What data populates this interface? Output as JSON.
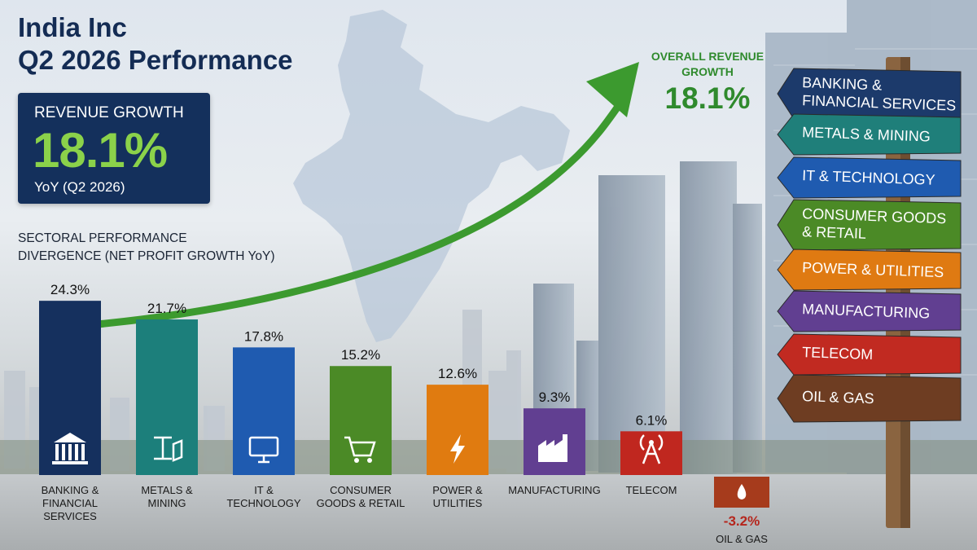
{
  "header": {
    "title_line1": "India Inc",
    "title_line2": "Q2 2026 Performance"
  },
  "revenue_box": {
    "label": "REVENUE GROWTH",
    "value": "18.1%",
    "subtitle": "YoY (Q2 2026)"
  },
  "sector_heading": {
    "line1": "SECTORAL PERFORMANCE",
    "line2_bold": "DIVERGENCE",
    "line2_light": " (NET PROFIT GROWTH YoY)"
  },
  "overall": {
    "label_line1": "OVERALL REVENUE",
    "label_line2": "GROWTH",
    "value": "18.1%"
  },
  "signposts": [
    {
      "lines": [
        "BANKING &",
        "FINANCIAL SERVICES"
      ],
      "color": "#1c3a6b"
    },
    {
      "lines": [
        "METALS & MINING"
      ],
      "color": "#1f7f7a"
    },
    {
      "lines": [
        "IT & TECHNOLOGY"
      ],
      "color": "#1f5bb0"
    },
    {
      "lines": [
        "CONSUMER GOODS",
        "& RETAIL"
      ],
      "color": "#4b8a26"
    },
    {
      "lines": [
        "POWER & UTILITIES"
      ],
      "color": "#df7a12"
    },
    {
      "lines": [
        "MANUFACTURING"
      ],
      "color": "#613f91"
    },
    {
      "lines": [
        "TELECOM"
      ],
      "color": "#c12a21"
    },
    {
      "lines": [
        "OIL & GAS"
      ],
      "color": "#6e3d22"
    }
  ],
  "chart_data": {
    "type": "bar",
    "categories": [
      [
        "BANKING &",
        "FINANCIAL",
        "SERVICES"
      ],
      [
        "METALS &",
        "MINING"
      ],
      [
        "IT &",
        "TECHNOLOGY"
      ],
      [
        "CONSUMER",
        "GOODS & RETAIL"
      ],
      [
        "POWER &",
        "UTILITIES"
      ],
      [
        "MANUFACTURING"
      ],
      [
        "TELECOM"
      ],
      [
        "OIL & GAS"
      ]
    ],
    "values": [
      24.3,
      21.7,
      17.8,
      15.2,
      12.6,
      9.3,
      6.1,
      -3.2
    ],
    "value_labels": [
      "24.3%",
      "21.7%",
      "17.8%",
      "15.2%",
      "12.6%",
      "9.3%",
      "6.1%",
      "-3.2%"
    ],
    "colors": [
      "#15305e",
      "#1c7f7b",
      "#1f5bb0",
      "#4b8a26",
      "#e07b10",
      "#613f91",
      "#c0271f",
      "#a63b1c"
    ],
    "icons": [
      "bank-icon",
      "steel-beam-icon",
      "monitor-icon",
      "shopping-cart-icon",
      "lightning-icon",
      "factory-icon",
      "signal-tower-icon",
      "oil-drop-icon"
    ],
    "unit": "%",
    "ylim": [
      -3.2,
      24.3
    ],
    "grid": false,
    "legend": "none"
  }
}
